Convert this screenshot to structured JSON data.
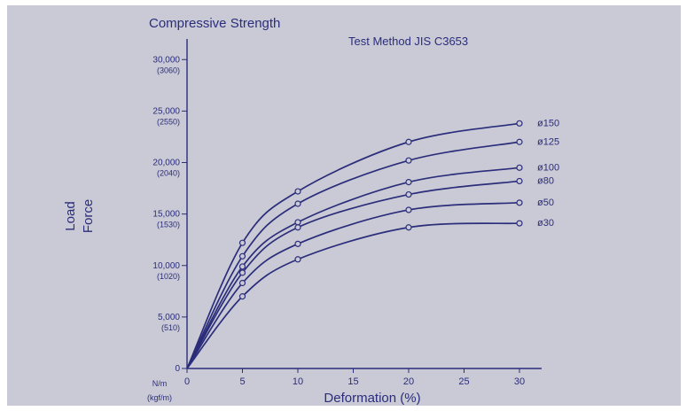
{
  "chart_data": {
    "type": "line",
    "title": "Compressive Strength",
    "subtitle": "Test Method JIS C3653",
    "ylabel": [
      "Load",
      "Force"
    ],
    "xlabel": "Deformation (%)",
    "y_unit_labels": [
      "N/m",
      "(kgf/m)"
    ],
    "xlim": [
      0,
      32
    ],
    "ylim": [
      0,
      32000
    ],
    "x_ticks": [
      0,
      5,
      10,
      15,
      20,
      25,
      30
    ],
    "y_ticks": [
      {
        "value": 0,
        "label": "0",
        "sub": ""
      },
      {
        "value": 5000,
        "label": "5,000",
        "sub": "(510)"
      },
      {
        "value": 10000,
        "label": "10,000",
        "sub": "(1020)"
      },
      {
        "value": 15000,
        "label": "15,000",
        "sub": "(1530)"
      },
      {
        "value": 20000,
        "label": "20,000",
        "sub": "(2040)"
      },
      {
        "value": 25000,
        "label": "25,000",
        "sub": "(2550)"
      },
      {
        "value": 30000,
        "label": "30,000",
        "sub": "(3060)"
      }
    ],
    "grid": false,
    "series": [
      {
        "name": "ø150",
        "x": [
          0,
          5,
          10,
          20,
          30
        ],
        "y": [
          0,
          12200,
          17200,
          22000,
          23800
        ]
      },
      {
        "name": "ø125",
        "x": [
          0,
          5,
          10,
          20,
          30
        ],
        "y": [
          0,
          10900,
          16000,
          20200,
          22000
        ]
      },
      {
        "name": "ø100",
        "x": [
          0,
          5,
          10,
          20,
          30
        ],
        "y": [
          0,
          9900,
          14200,
          18100,
          19500
        ]
      },
      {
        "name": "ø80",
        "x": [
          0,
          5,
          10,
          20,
          30
        ],
        "y": [
          0,
          9300,
          13700,
          16900,
          18200
        ]
      },
      {
        "name": "ø50",
        "x": [
          0,
          5,
          10,
          20,
          30
        ],
        "y": [
          0,
          8300,
          12100,
          15400,
          16100
        ]
      },
      {
        "name": "ø30",
        "x": [
          0,
          5,
          10,
          20,
          30
        ],
        "y": [
          0,
          7000,
          10600,
          13700,
          14100
        ]
      }
    ],
    "colors": {
      "ink": "#2b2d7a",
      "background": "#c9cad6"
    }
  }
}
